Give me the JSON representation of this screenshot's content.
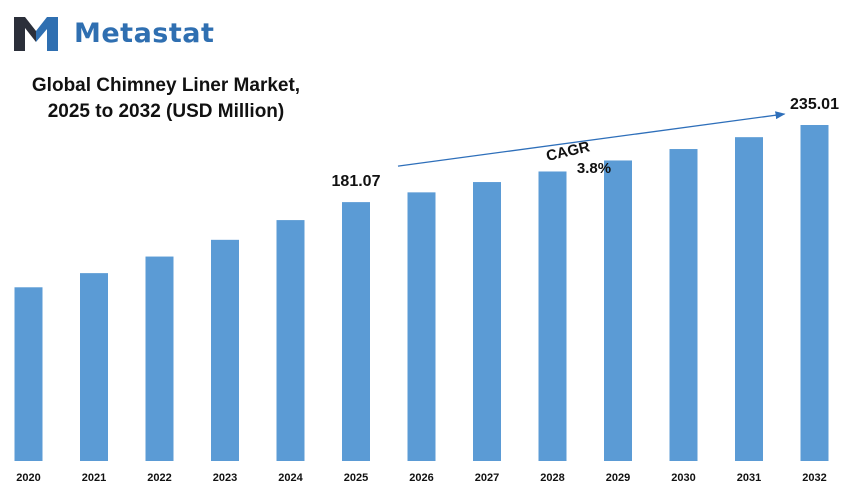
{
  "brand": {
    "name": "Metastat",
    "icon": "metastat-m-logo-icon",
    "colors": {
      "dark": "#2b2f3a",
      "blue": "#2f6fb1"
    }
  },
  "title_lines": [
    "Global Chimney Liner Market,",
    "2025 to 2032 (USD Million)"
  ],
  "colors": {
    "bar": "#5b9bd5",
    "arrow": "#2e6fba"
  },
  "chart_data": {
    "type": "bar",
    "title": "Global Chimney Liner Market, 2025 to 2032 (USD Million)",
    "categories": [
      "2020",
      "2021",
      "2022",
      "2023",
      "2024",
      "2025",
      "2026",
      "2027",
      "2028",
      "2029",
      "2030",
      "2031",
      "2032"
    ],
    "series": [
      {
        "values": [
          121.5,
          131.4,
          143.0,
          154.7,
          168.5,
          181.07,
          187.9,
          195.1,
          202.5,
          210.2,
          218.2,
          226.5,
          235.01
        ]
      }
    ],
    "data_labels": [
      {
        "category": "2025",
        "text": "181.07"
      },
      {
        "category": "2032",
        "text": "235.01"
      }
    ],
    "annotation": {
      "text_line1": "CAGR",
      "text_line2": "3.8%",
      "from": "2025",
      "to": "2032"
    },
    "ylim": [
      0,
      235.01
    ],
    "grid": false,
    "legend": "none"
  }
}
